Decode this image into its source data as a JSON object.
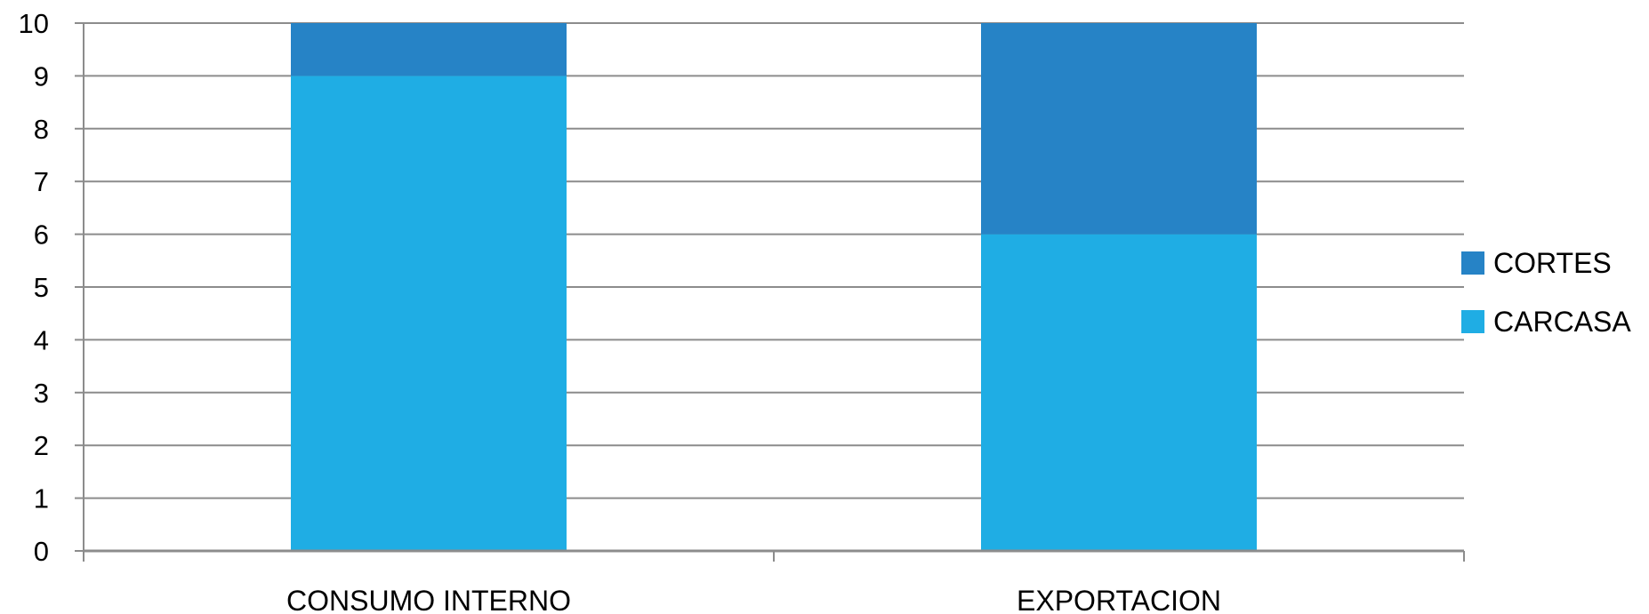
{
  "chart_data": {
    "type": "bar",
    "stacked": true,
    "categories": [
      "CONSUMO INTERNO",
      "EXPORTACION"
    ],
    "series": [
      {
        "name": "CARCASA",
        "values": [
          9,
          6
        ],
        "color": "#1FADE4"
      },
      {
        "name": "CORTES",
        "values": [
          1,
          4
        ],
        "color": "#2683C6"
      }
    ],
    "title": "",
    "xlabel": "",
    "ylabel": "",
    "ylim": [
      0,
      10
    ],
    "yticks": [
      "0",
      "1",
      "2",
      "3",
      "4",
      "5",
      "6",
      "7",
      "8",
      "9",
      "10"
    ],
    "grid": true,
    "legend": {
      "position": "right",
      "entries": [
        "CORTES",
        "CARCASA"
      ]
    },
    "colors": {
      "gridline": "#8C8C8C",
      "axis": "#8C8C8C",
      "text": "#000000"
    }
  }
}
